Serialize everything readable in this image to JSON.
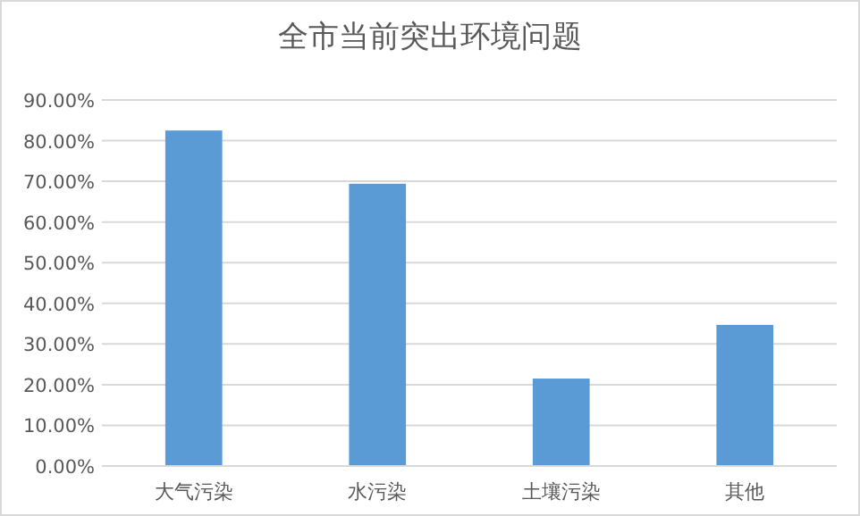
{
  "chart_data": {
    "type": "bar",
    "title": "全市当前突出环境问题",
    "categories": [
      "大气污染",
      "水污染",
      "土壤污染",
      "其他"
    ],
    "values": [
      82.5,
      69.4,
      21.5,
      34.7
    ],
    "color": "#5b9bd5",
    "ylim": [
      0,
      90
    ],
    "yticks": [
      {
        "value": 0,
        "label": "0.00%"
      },
      {
        "value": 10,
        "label": "10.00%"
      },
      {
        "value": 20,
        "label": "20.00%"
      },
      {
        "value": 30,
        "label": "30.00%"
      },
      {
        "value": 40,
        "label": "40.00%"
      },
      {
        "value": 50,
        "label": "50.00%"
      },
      {
        "value": 60,
        "label": "60.00%"
      },
      {
        "value": 70,
        "label": "70.00%"
      },
      {
        "value": 80,
        "label": "80.00%"
      },
      {
        "value": 90,
        "label": "90.00%"
      }
    ],
    "grid": "y"
  }
}
